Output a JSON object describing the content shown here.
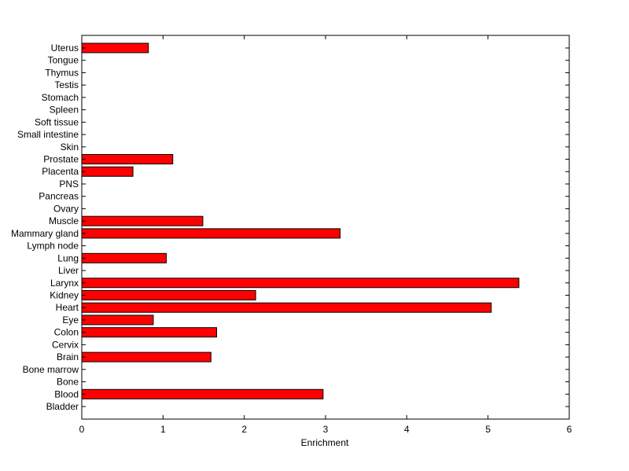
{
  "chart_data": {
    "type": "bar",
    "orientation": "horizontal",
    "xlabel": "Enrichment",
    "ylabel": "",
    "xlim": [
      0,
      6
    ],
    "xticks": [
      "0",
      "1",
      "2",
      "3",
      "4",
      "5",
      "6"
    ],
    "grid": false,
    "legend": "none",
    "bar_color": "#ff0000",
    "edge_color": "#000000",
    "categories": [
      "Bladder",
      "Blood",
      "Bone",
      "Bone marrow",
      "Brain",
      "Cervix",
      "Colon",
      "Eye",
      "Heart",
      "Kidney",
      "Larynx",
      "Liver",
      "Lung",
      "Lymph node",
      "Mammary gland",
      "Muscle",
      "Ovary",
      "Pancreas",
      "PNS",
      "Placenta",
      "Prostate",
      "Skin",
      "Small intestine",
      "Soft tissue",
      "Spleen",
      "Stomach",
      "Testis",
      "Thymus",
      "Tongue",
      "Uterus"
    ],
    "values": [
      0,
      2.97,
      0,
      0,
      1.59,
      0,
      1.66,
      0.88,
      5.04,
      2.14,
      5.38,
      0,
      1.04,
      0,
      3.18,
      1.49,
      0,
      0,
      0,
      0.63,
      1.12,
      0,
      0,
      0,
      0,
      0,
      0,
      0,
      0,
      0.82
    ]
  }
}
